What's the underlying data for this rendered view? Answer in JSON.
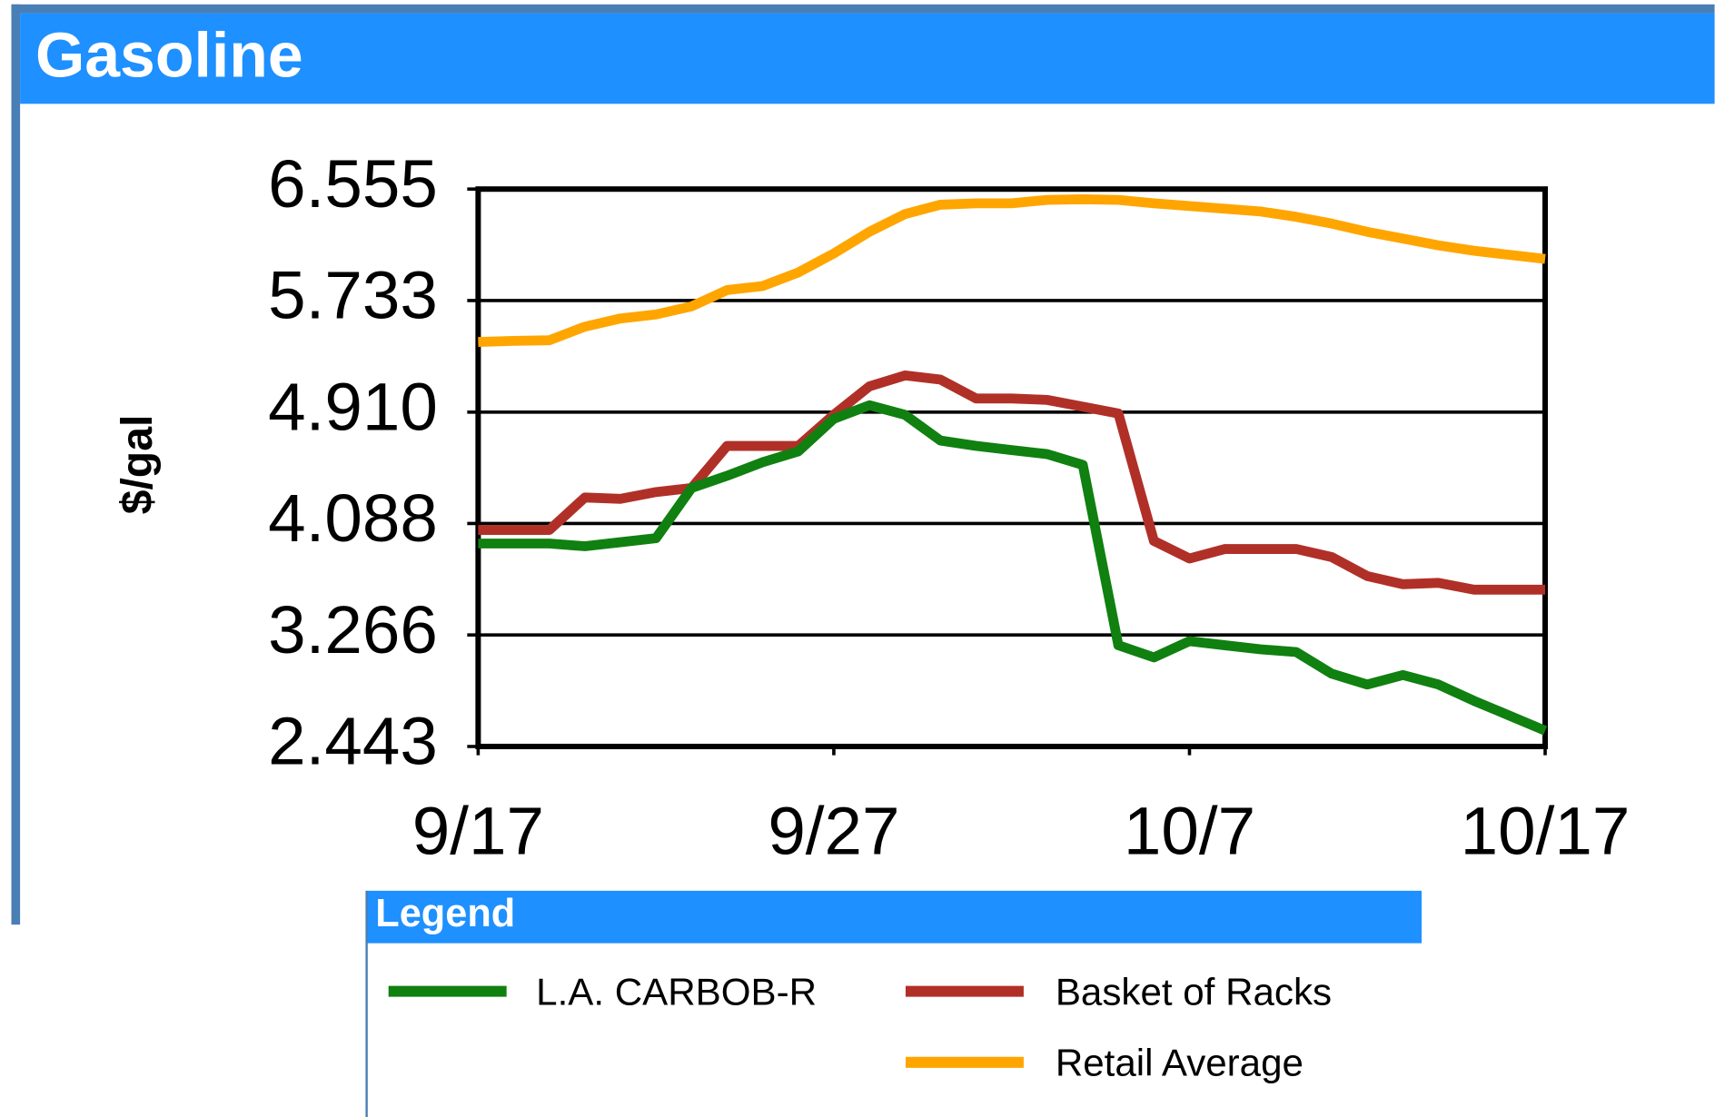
{
  "chart_data": {
    "type": "line",
    "title": "Gasoline",
    "y_label": "$/gal",
    "legend_title": "Legend",
    "x": [
      "9/17",
      "9/18",
      "9/19",
      "9/20",
      "9/21",
      "9/22",
      "9/23",
      "9/24",
      "9/25",
      "9/26",
      "9/27",
      "9/28",
      "9/29",
      "9/30",
      "10/1",
      "10/2",
      "10/3",
      "10/4",
      "10/5",
      "10/6",
      "10/7",
      "10/8",
      "10/9",
      "10/10",
      "10/11",
      "10/12",
      "10/13",
      "10/14",
      "10/15",
      "10/16",
      "10/17"
    ],
    "xticks": [
      "9/17",
      "9/27",
      "10/7",
      "10/17"
    ],
    "ylim": [
      2.443,
      6.555
    ],
    "yticks": [
      2.443,
      3.266,
      4.088,
      {
        "value": 4.91,
        "label": "4.910"
      },
      5.733,
      6.555
    ],
    "grid": true,
    "series": [
      {
        "name": "L.A. CARBOB-R",
        "color": "#108010",
        "values": [
          3.94,
          3.94,
          3.94,
          3.92,
          3.95,
          3.98,
          4.35,
          4.44,
          4.54,
          4.62,
          4.86,
          4.96,
          4.89,
          4.7,
          4.66,
          4.63,
          4.6,
          4.52,
          3.19,
          3.1,
          3.22,
          3.19,
          3.16,
          3.14,
          2.98,
          2.9,
          2.97,
          2.9,
          2.78,
          2.67,
          2.56
        ]
      },
      {
        "name": "Basket of Racks",
        "color": "#b03028",
        "values": [
          4.04,
          4.04,
          4.04,
          4.28,
          4.27,
          4.32,
          4.35,
          4.66,
          4.66,
          4.66,
          4.89,
          5.1,
          5.18,
          5.15,
          5.01,
          5.01,
          5.0,
          4.95,
          4.9,
          3.96,
          3.83,
          3.9,
          3.9,
          3.9,
          3.84,
          3.7,
          3.64,
          3.65,
          3.6,
          3.6,
          3.6
        ]
      },
      {
        "name": "Retail Average",
        "color": "#ffa500",
        "values": [
          5.427,
          5.435,
          5.44,
          5.54,
          5.6,
          5.63,
          5.69,
          5.81,
          5.84,
          5.94,
          6.08,
          6.24,
          6.37,
          6.44,
          6.45,
          6.45,
          6.475,
          6.48,
          6.475,
          6.45,
          6.43,
          6.41,
          6.39,
          6.35,
          6.3,
          6.24,
          6.19,
          6.14,
          6.1,
          6.07,
          6.04
        ]
      }
    ]
  }
}
